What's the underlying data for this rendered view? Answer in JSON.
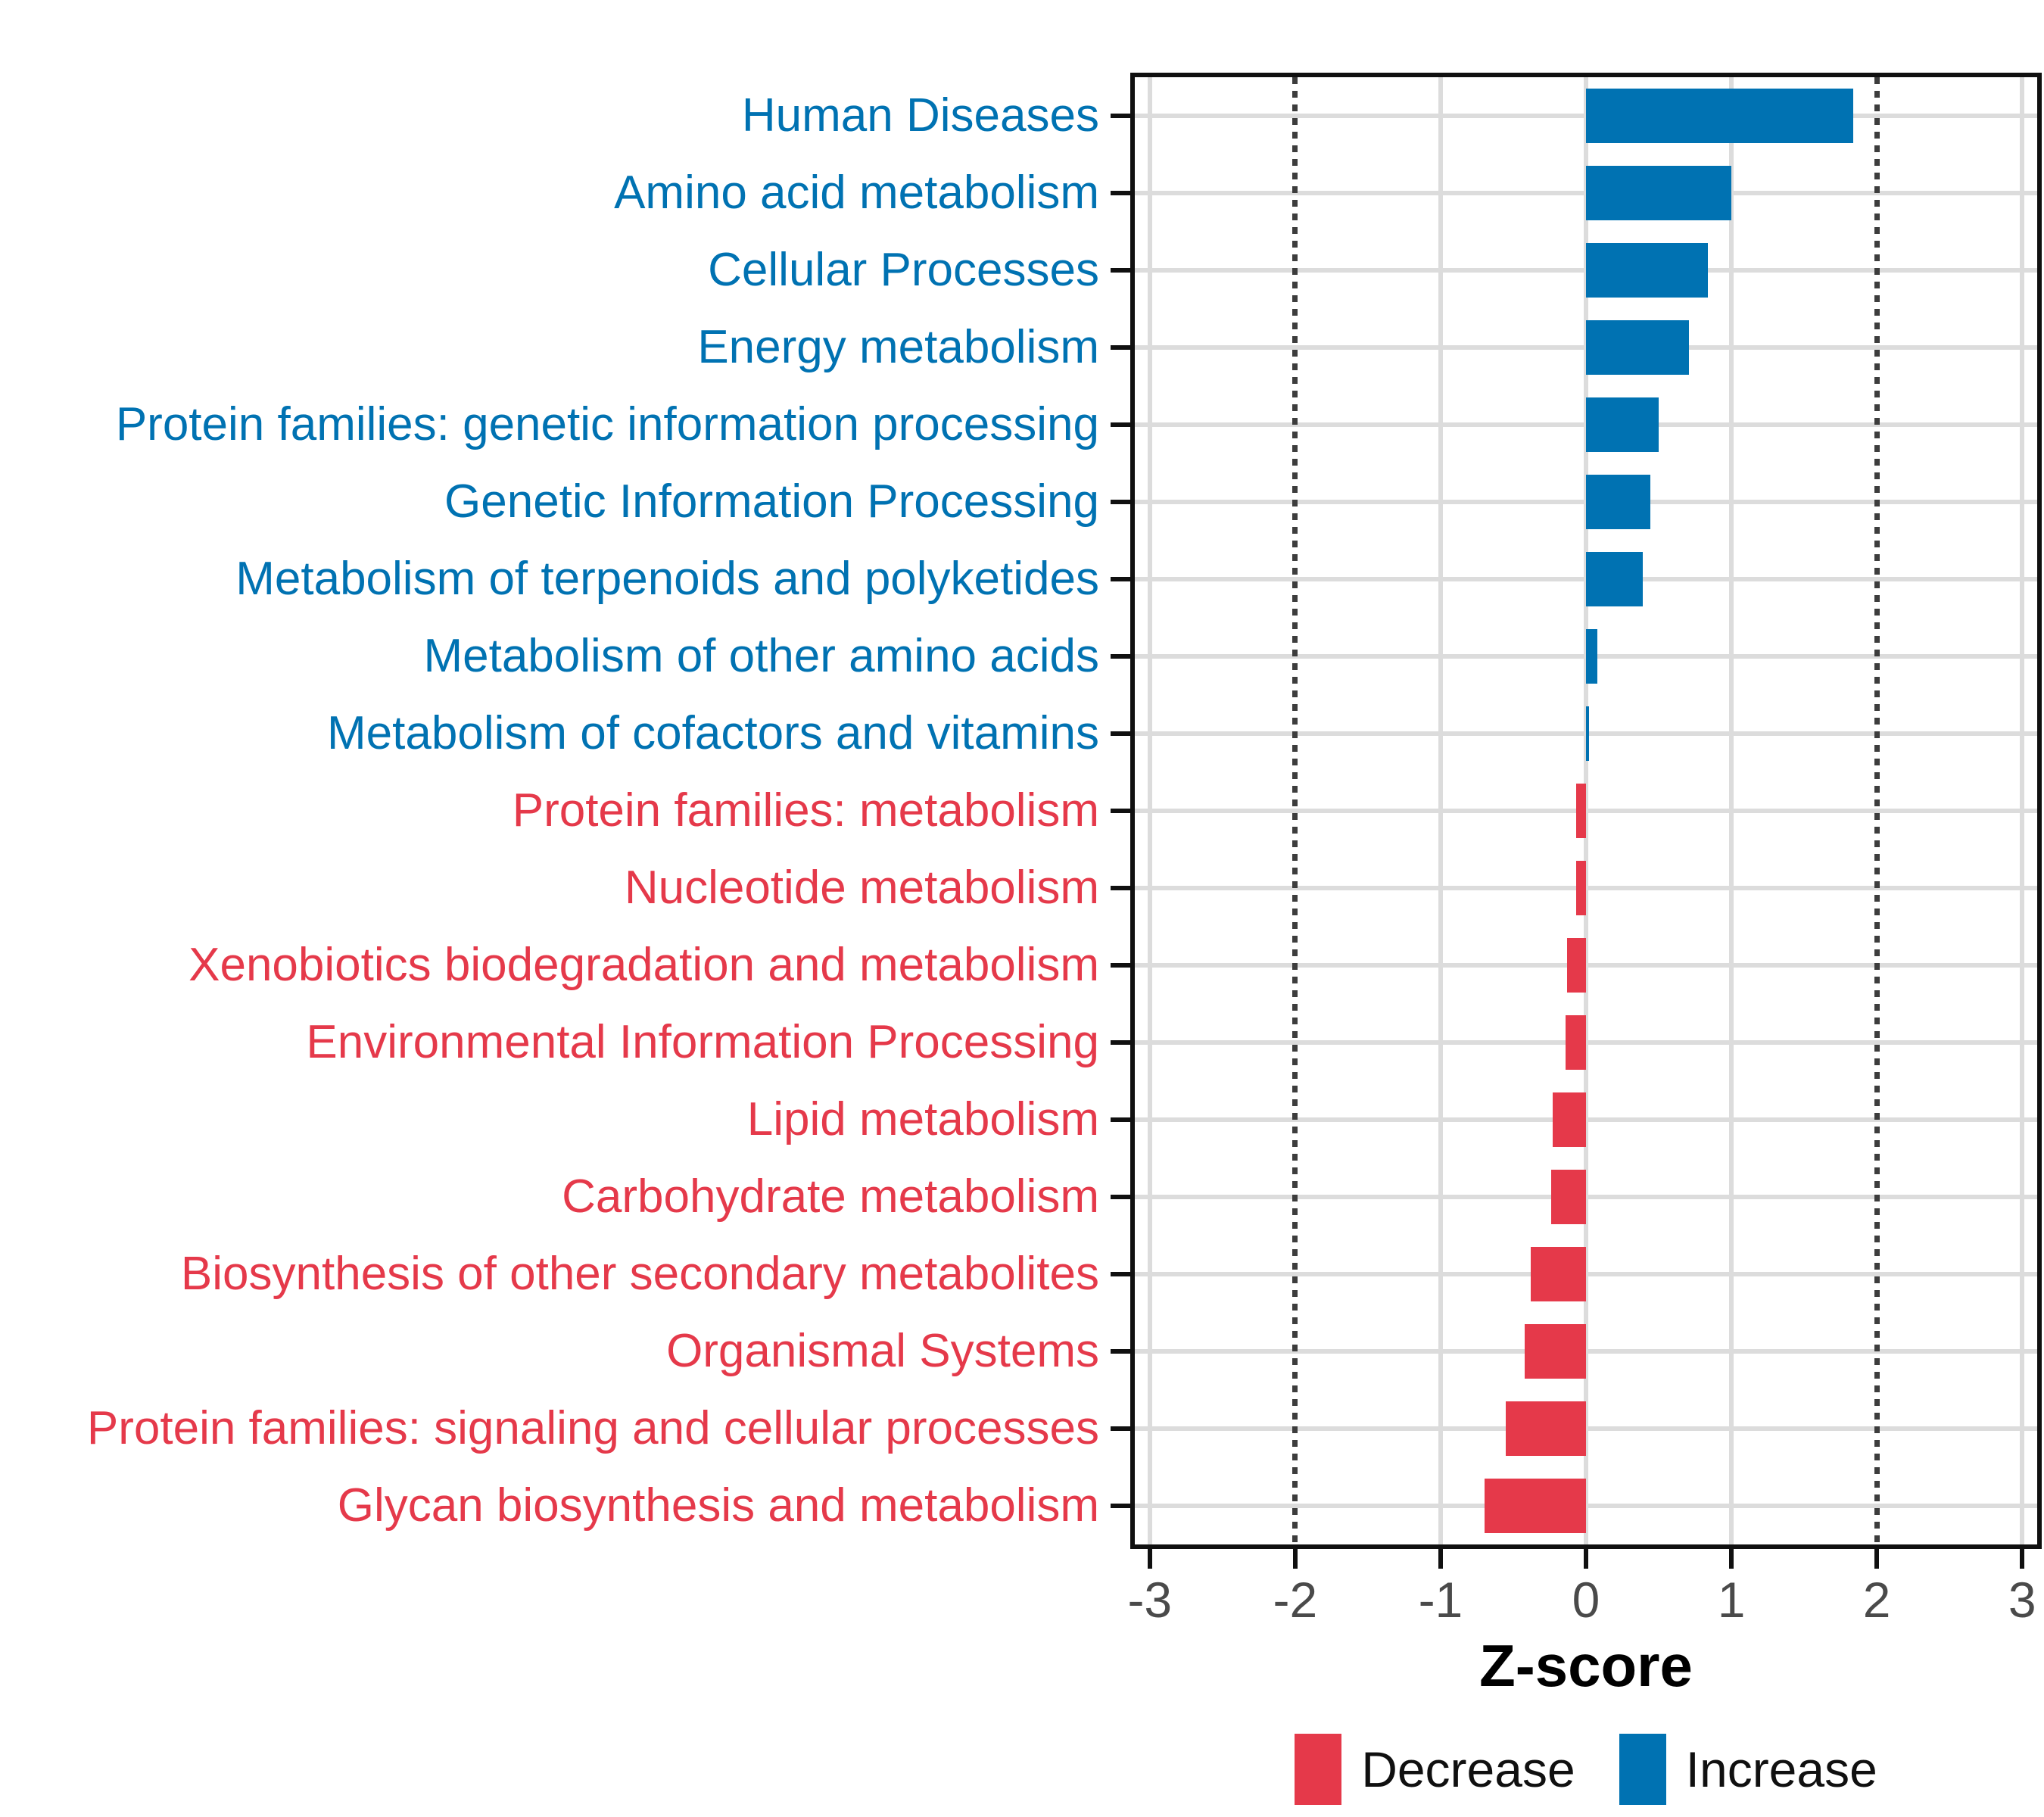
{
  "chart_data": {
    "type": "bar",
    "orientation": "horizontal",
    "xlabel": "Z-score",
    "xlim": [
      -3.103,
      3.103
    ],
    "x_tick_values": [
      -3,
      -2,
      -1,
      0,
      1,
      2,
      3
    ],
    "x_tick_labels": [
      "-3",
      "-2",
      "-1",
      "0",
      "1",
      "2",
      "3"
    ],
    "solid_gridline_values": [
      -3,
      -1,
      0,
      1,
      3
    ],
    "dotted_reference_lines": [
      -2,
      2
    ],
    "grid": "on",
    "legend_position": "bottom",
    "colors": {
      "increase": "#0072B2",
      "decrease": "#E5394A"
    },
    "categories": [
      "Human Diseases",
      "Amino acid metabolism",
      "Cellular Processes",
      "Energy metabolism",
      "Protein families: genetic information processing",
      "Genetic Information Processing",
      "Metabolism of terpenoids and polyketides",
      "Metabolism of other amino acids",
      "Metabolism of cofactors and vitamins",
      "Protein families: metabolism",
      "Nucleotide metabolism",
      "Xenobiotics biodegradation and metabolism",
      "Environmental Information Processing",
      "Lipid metabolism",
      "Carbohydrate metabolism",
      "Biosynthesis of other secondary metabolites",
      "Organismal Systems",
      "Protein families: signaling and cellular processes",
      "Glycan biosynthesis and metabolism"
    ],
    "values": [
      1.84,
      1.0,
      0.84,
      0.71,
      0.5,
      0.44,
      0.39,
      0.08,
      0.02,
      -0.07,
      -0.07,
      -0.13,
      -0.14,
      -0.23,
      -0.24,
      -0.38,
      -0.42,
      -0.55,
      -0.7
    ],
    "directions": [
      "Increase",
      "Increase",
      "Increase",
      "Increase",
      "Increase",
      "Increase",
      "Increase",
      "Increase",
      "Increase",
      "Decrease",
      "Decrease",
      "Decrease",
      "Decrease",
      "Decrease",
      "Decrease",
      "Decrease",
      "Decrease",
      "Decrease",
      "Decrease"
    ],
    "legend": [
      {
        "label": "Decrease",
        "color": "#E5394A"
      },
      {
        "label": "Increase",
        "color": "#0072B2"
      }
    ]
  }
}
